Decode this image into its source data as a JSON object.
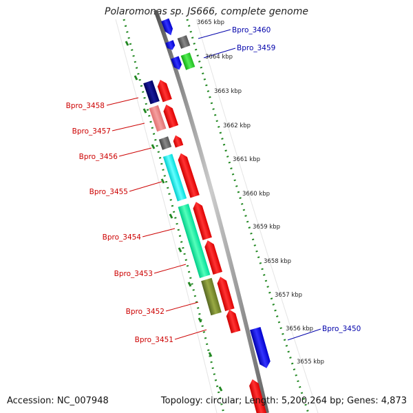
{
  "title": "Polaromonas sp. JS666, complete genome",
  "footer": {
    "accession": "Accession: NC_007948",
    "summary": "Topology: circular; Length: 5,200,264 bp; Genes: 4,873"
  },
  "ticks": [
    {
      "label": "3665 kbp"
    },
    {
      "label": "3664 kbp"
    },
    {
      "label": "3663 kbp"
    },
    {
      "label": "3662 kbp"
    },
    {
      "label": "3661 kbp"
    },
    {
      "label": "3660 kbp"
    },
    {
      "label": "3659 kbp"
    },
    {
      "label": "3658 kbp"
    },
    {
      "label": "3657 kbp"
    },
    {
      "label": "3656 kbp"
    },
    {
      "label": "3655 kbp"
    }
  ],
  "gene_labels": {
    "left": [
      "Bpro_3458",
      "Bpro_3457",
      "Bpro_3456",
      "Bpro_3455",
      "Bpro_3454",
      "Bpro_3453",
      "Bpro_3452",
      "Bpro_3451"
    ],
    "right": [
      "Bpro_3460",
      "Bpro_3459",
      "Bpro_3450"
    ]
  },
  "colors": {
    "left_label": "#cc0000",
    "right_label": "#0000aa",
    "dotted_track": "#228822",
    "backbone": "#888888"
  }
}
